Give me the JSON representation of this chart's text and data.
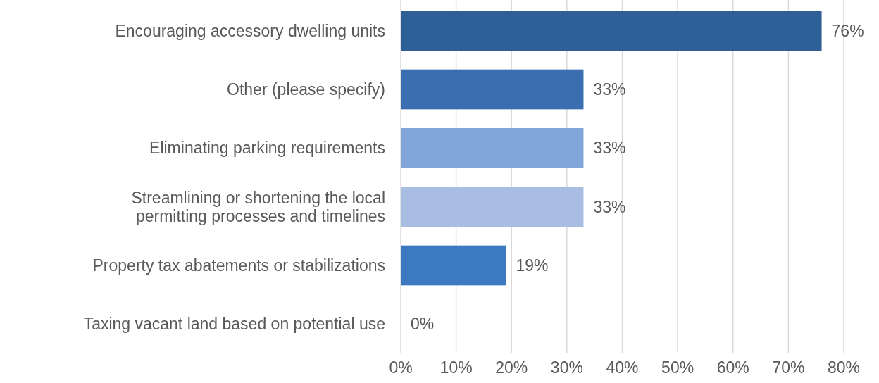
{
  "chart_data": {
    "type": "bar",
    "orientation": "horizontal",
    "categories": [
      "Encouraging accessory dwelling units",
      "Other (please specify)",
      "Eliminating parking requirements",
      "Streamlining or shortening the local\npermitting processes and timelines",
      "Property tax abatements or stabilizations",
      "Taxing vacant land based on potential use"
    ],
    "values": [
      76,
      33,
      33,
      33,
      19,
      0
    ],
    "colors": [
      "#2e5f96",
      "#3a6eb0",
      "#82a5d9",
      "#a9bde3",
      "#3d79c0",
      "#3d79c0"
    ],
    "value_labels": [
      "76%",
      "33%",
      "33%",
      "33%",
      "19%",
      "0%"
    ],
    "xlim": [
      0,
      80
    ],
    "xticks": [
      {
        "value": 0,
        "label": "0%"
      },
      {
        "value": 10,
        "label": "10%"
      },
      {
        "value": 20,
        "label": "20%"
      },
      {
        "value": 30,
        "label": "30%"
      },
      {
        "value": 40,
        "label": "40%"
      },
      {
        "value": 50,
        "label": "50%"
      },
      {
        "value": 60,
        "label": "60%"
      },
      {
        "value": 70,
        "label": "70%"
      },
      {
        "value": 80,
        "label": "80%"
      }
    ],
    "grid": "x"
  }
}
